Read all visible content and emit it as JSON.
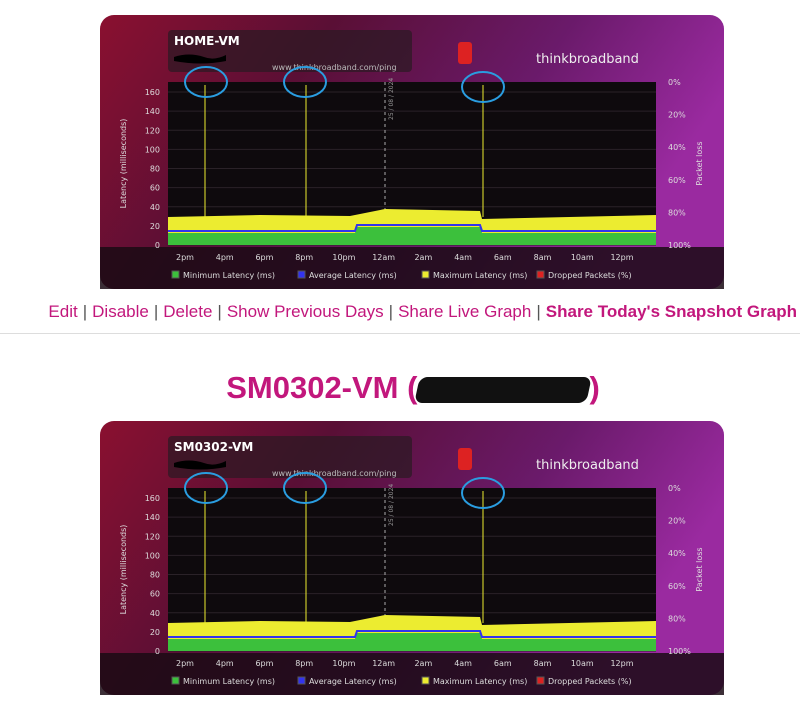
{
  "graphs": [
    {
      "name": "HOME-VM",
      "url": "www.thinkbroadband.com/ping",
      "brand": "thinkbroadband",
      "date": "25 / 08 / 2024",
      "y_label": "Latency (milliseconds)",
      "y2_label": "Packet loss",
      "yticks": [
        0,
        20,
        40,
        60,
        80,
        100,
        120,
        140,
        160
      ],
      "y2ticks": [
        "0%",
        "20%",
        "40%",
        "60%",
        "80%",
        "100%"
      ],
      "xticks": [
        "2pm",
        "4pm",
        "6pm",
        "8pm",
        "10pm",
        "12am",
        "2am",
        "4am",
        "6am",
        "8am",
        "10am",
        "12pm"
      ],
      "legend": [
        "Minimum Latency (ms)",
        "Average Latency (ms)",
        "Maximum Latency (ms)",
        "Dropped Packets (%)"
      ]
    },
    {
      "name": "SM0302-VM",
      "url": "www.thinkbroadband.com/ping",
      "brand": "thinkbroadband",
      "date": "25 / 08 / 2024",
      "y_label": "Latency (milliseconds)",
      "y2_label": "Packet loss",
      "yticks": [
        0,
        20,
        40,
        60,
        80,
        100,
        120,
        140,
        160
      ],
      "y2ticks": [
        "0%",
        "20%",
        "40%",
        "60%",
        "80%",
        "100%"
      ],
      "xticks": [
        "2pm",
        "4pm",
        "6pm",
        "8pm",
        "10pm",
        "12am",
        "2am",
        "4am",
        "6am",
        "8am",
        "10am",
        "12pm"
      ],
      "legend": [
        "Minimum Latency (ms)",
        "Average Latency (ms)",
        "Maximum Latency (ms)",
        "Dropped Packets (%)"
      ]
    }
  ],
  "links": [
    "Edit",
    "Disable",
    "Delete",
    "Show Previous Days",
    "Share Live Graph",
    "Share Today's Snapshot Graph"
  ],
  "separator": "|",
  "heading": {
    "prefix": "SM0302-VM (",
    "suffix": ")"
  }
}
